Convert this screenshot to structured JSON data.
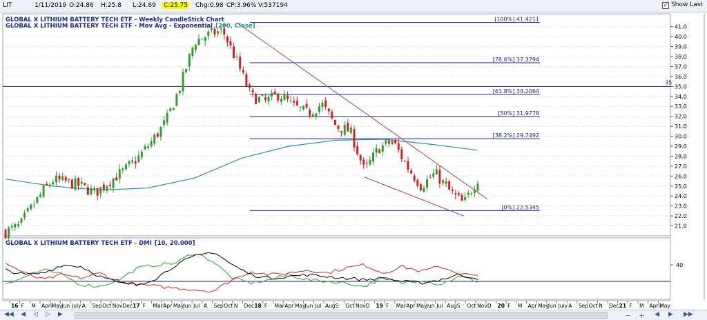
{
  "toolbar": {
    "symbol": "LIT",
    "date": "1/11/2019",
    "open": "O:24.86",
    "high": "H:25.8",
    "low": "L:24.69",
    "close": "C:25.75",
    "change": "Chg:0.98",
    "change_pct": "CP:3.96%",
    "volume": "V:537194",
    "show_last_label": "Show Last",
    "show_last_checked": true
  },
  "colors": {
    "up": "#2e9e2e",
    "down": "#d42020",
    "ema": "#2a8c9c",
    "fib": "#1a237e",
    "trend": "#a04848",
    "dmi_pos": "#22aa22",
    "dmi_neg": "#dd2222",
    "adx": "#000000",
    "title_blue": "#1a2a9a",
    "title_teal": "#208f8f"
  },
  "chart_data": [
    {
      "type": "candlestick",
      "title": "GLOBAL X LITHIUM BATTERY TECH ETF - Weekly CandleStick Chart",
      "subtitle_prefix": "GLOBAL X LITHIUM BATTERY TECH ETF - Mov Avg - Exponential",
      "subtitle_params": "[200, Close]",
      "ylim": [
        20.0,
        41.6
      ],
      "y_ticks": [
        21.0,
        22.0,
        23.0,
        24.0,
        25.0,
        26.0,
        27.0,
        28.0,
        29.0,
        30.0,
        31.0,
        32.0,
        33.0,
        34.0,
        35.0,
        36.0,
        37.0,
        38.0,
        39.0,
        40.0,
        41.0
      ],
      "series_closes": [
        {
          "t": 0.0,
          "v": 20.4
        },
        {
          "t": 0.03,
          "v": 21.0
        },
        {
          "t": 0.05,
          "v": 22.5
        },
        {
          "t": 0.08,
          "v": 24.5
        },
        {
          "t": 0.1,
          "v": 25.6
        },
        {
          "t": 0.13,
          "v": 25.4
        },
        {
          "t": 0.16,
          "v": 25.0
        },
        {
          "t": 0.19,
          "v": 24.3
        },
        {
          "t": 0.22,
          "v": 25.5
        },
        {
          "t": 0.25,
          "v": 26.5
        },
        {
          "t": 0.28,
          "v": 27.8
        },
        {
          "t": 0.31,
          "v": 29.5
        },
        {
          "t": 0.34,
          "v": 31.5
        },
        {
          "t": 0.37,
          "v": 35.0
        },
        {
          "t": 0.4,
          "v": 39.5
        },
        {
          "t": 0.43,
          "v": 40.2
        },
        {
          "t": 0.46,
          "v": 40.6
        },
        {
          "t": 0.49,
          "v": 37.5
        },
        {
          "t": 0.52,
          "v": 34.0
        },
        {
          "t": 0.55,
          "v": 33.5
        },
        {
          "t": 0.58,
          "v": 34.2
        },
        {
          "t": 0.61,
          "v": 33.0
        },
        {
          "t": 0.64,
          "v": 32.3
        },
        {
          "t": 0.67,
          "v": 33.2
        },
        {
          "t": 0.7,
          "v": 31.0
        },
        {
          "t": 0.73,
          "v": 30.5
        },
        {
          "t": 0.76,
          "v": 26.5
        },
        {
          "t": 0.79,
          "v": 28.8
        },
        {
          "t": 0.82,
          "v": 29.5
        },
        {
          "t": 0.85,
          "v": 27.0
        },
        {
          "t": 0.88,
          "v": 25.0
        },
        {
          "t": 0.91,
          "v": 26.3
        },
        {
          "t": 0.94,
          "v": 24.5
        },
        {
          "t": 0.97,
          "v": 23.2
        },
        {
          "t": 1.0,
          "v": 25.75
        }
      ],
      "ema_200": [
        {
          "t": 0.0,
          "v": 25.7
        },
        {
          "t": 0.1,
          "v": 25.0
        },
        {
          "t": 0.2,
          "v": 24.6
        },
        {
          "t": 0.3,
          "v": 24.8
        },
        {
          "t": 0.4,
          "v": 25.8
        },
        {
          "t": 0.5,
          "v": 27.8
        },
        {
          "t": 0.6,
          "v": 29.0
        },
        {
          "t": 0.7,
          "v": 29.6
        },
        {
          "t": 0.8,
          "v": 29.7
        },
        {
          "t": 0.9,
          "v": 29.2
        },
        {
          "t": 1.0,
          "v": 28.6
        }
      ],
      "fibonacci": [
        {
          "label": "[100%] 41.4211",
          "value": 41.4211
        },
        {
          "label": "[78.6%] 37.3794",
          "value": 37.3794
        },
        {
          "label": "[61.8%] 34.2064",
          "value": 34.2064
        },
        {
          "label": "[50%] 31.9778",
          "value": 31.9778
        },
        {
          "label": "[38.2%] 29.7492",
          "value": 29.7492
        },
        {
          "label": "[0%] 22.5345",
          "value": 22.5345
        }
      ],
      "horizontal_line": {
        "value": 35.0,
        "label": "35"
      },
      "trendlines": [
        {
          "from": {
            "t": 0.49,
            "v": 41.4
          },
          "to": {
            "t": 1.02,
            "v": 23.7
          }
        },
        {
          "from": {
            "t": 0.76,
            "v": 25.9
          },
          "to": {
            "t": 0.97,
            "v": 22.0
          }
        }
      ]
    },
    {
      "type": "line",
      "title": "GLOBAL X LITHIUM BATTERY TECH ETF - DMI",
      "title_params": "[10, 20.000]",
      "ylim": [
        0,
        60
      ],
      "y_ticks": [
        40
      ],
      "reference_line": 20,
      "series": [
        {
          "key": "dmi_pos",
          "points": [
            {
              "t": 0.0,
              "v": 18
            },
            {
              "t": 0.04,
              "v": 25
            },
            {
              "t": 0.08,
              "v": 34
            },
            {
              "t": 0.12,
              "v": 28
            },
            {
              "t": 0.16,
              "v": 16
            },
            {
              "t": 0.2,
              "v": 14
            },
            {
              "t": 0.24,
              "v": 22
            },
            {
              "t": 0.28,
              "v": 36
            },
            {
              "t": 0.32,
              "v": 40
            },
            {
              "t": 0.36,
              "v": 42
            },
            {
              "t": 0.4,
              "v": 55
            },
            {
              "t": 0.44,
              "v": 44
            },
            {
              "t": 0.48,
              "v": 24
            },
            {
              "t": 0.52,
              "v": 18
            },
            {
              "t": 0.56,
              "v": 22
            },
            {
              "t": 0.6,
              "v": 28
            },
            {
              "t": 0.64,
              "v": 22
            },
            {
              "t": 0.68,
              "v": 20
            },
            {
              "t": 0.72,
              "v": 18
            },
            {
              "t": 0.76,
              "v": 14
            },
            {
              "t": 0.8,
              "v": 24
            },
            {
              "t": 0.84,
              "v": 18
            },
            {
              "t": 0.88,
              "v": 22
            },
            {
              "t": 0.92,
              "v": 16
            },
            {
              "t": 0.96,
              "v": 26
            },
            {
              "t": 1.0,
              "v": 20
            }
          ]
        },
        {
          "key": "dmi_neg",
          "points": [
            {
              "t": 0.0,
              "v": 42
            },
            {
              "t": 0.04,
              "v": 30
            },
            {
              "t": 0.08,
              "v": 22
            },
            {
              "t": 0.12,
              "v": 28
            },
            {
              "t": 0.16,
              "v": 24
            },
            {
              "t": 0.2,
              "v": 30
            },
            {
              "t": 0.24,
              "v": 20
            },
            {
              "t": 0.28,
              "v": 16
            },
            {
              "t": 0.32,
              "v": 14
            },
            {
              "t": 0.36,
              "v": 12
            },
            {
              "t": 0.4,
              "v": 10
            },
            {
              "t": 0.44,
              "v": 8
            },
            {
              "t": 0.48,
              "v": 22
            },
            {
              "t": 0.52,
              "v": 32
            },
            {
              "t": 0.56,
              "v": 28
            },
            {
              "t": 0.6,
              "v": 30
            },
            {
              "t": 0.64,
              "v": 34
            },
            {
              "t": 0.68,
              "v": 30
            },
            {
              "t": 0.72,
              "v": 36
            },
            {
              "t": 0.76,
              "v": 40
            },
            {
              "t": 0.8,
              "v": 30
            },
            {
              "t": 0.84,
              "v": 38
            },
            {
              "t": 0.88,
              "v": 32
            },
            {
              "t": 0.92,
              "v": 38
            },
            {
              "t": 0.96,
              "v": 30
            },
            {
              "t": 1.0,
              "v": 26
            }
          ]
        },
        {
          "key": "adx",
          "points": [
            {
              "t": 0.0,
              "v": 34
            },
            {
              "t": 0.04,
              "v": 28
            },
            {
              "t": 0.08,
              "v": 30
            },
            {
              "t": 0.12,
              "v": 40
            },
            {
              "t": 0.16,
              "v": 38
            },
            {
              "t": 0.2,
              "v": 26
            },
            {
              "t": 0.24,
              "v": 18
            },
            {
              "t": 0.28,
              "v": 16
            },
            {
              "t": 0.32,
              "v": 24
            },
            {
              "t": 0.36,
              "v": 40
            },
            {
              "t": 0.4,
              "v": 50
            },
            {
              "t": 0.44,
              "v": 56
            },
            {
              "t": 0.48,
              "v": 40
            },
            {
              "t": 0.52,
              "v": 28
            },
            {
              "t": 0.56,
              "v": 24
            },
            {
              "t": 0.6,
              "v": 26
            },
            {
              "t": 0.64,
              "v": 28
            },
            {
              "t": 0.68,
              "v": 26
            },
            {
              "t": 0.72,
              "v": 24
            },
            {
              "t": 0.76,
              "v": 22
            },
            {
              "t": 0.8,
              "v": 24
            },
            {
              "t": 0.84,
              "v": 20
            },
            {
              "t": 0.88,
              "v": 18
            },
            {
              "t": 0.92,
              "v": 22
            },
            {
              "t": 0.96,
              "v": 28
            },
            {
              "t": 1.0,
              "v": 24
            }
          ]
        }
      ]
    }
  ],
  "x_axis": {
    "labels": [
      "16",
      "F",
      "M",
      "April",
      "May",
      "Jun",
      "July",
      "A",
      "Sep",
      "Oct",
      "Nov",
      "Dec",
      "17",
      "F",
      "Mar",
      "Apr",
      "May",
      "Jun",
      "Jul",
      "A",
      "Sep",
      "Oct",
      "N",
      "Dec",
      "18",
      "F",
      "Mar",
      "Apr",
      "May",
      "Jun",
      "Jul",
      "Aug",
      "S",
      "Oct",
      "Nov",
      "D",
      "19",
      "F",
      "Mar",
      "Apr",
      "May",
      "Jun",
      "Jul",
      "Aug",
      "S",
      "Oct",
      "Nov",
      "D",
      "20",
      "F",
      "M",
      "Apr",
      "May",
      "Jun",
      "July",
      "A",
      "Sep",
      "Oct",
      "N",
      "Dec",
      "21",
      "F",
      "M",
      "April",
      "May"
    ],
    "year_labels": [
      "16",
      "17",
      "18",
      "19",
      "20",
      "21"
    ]
  }
}
